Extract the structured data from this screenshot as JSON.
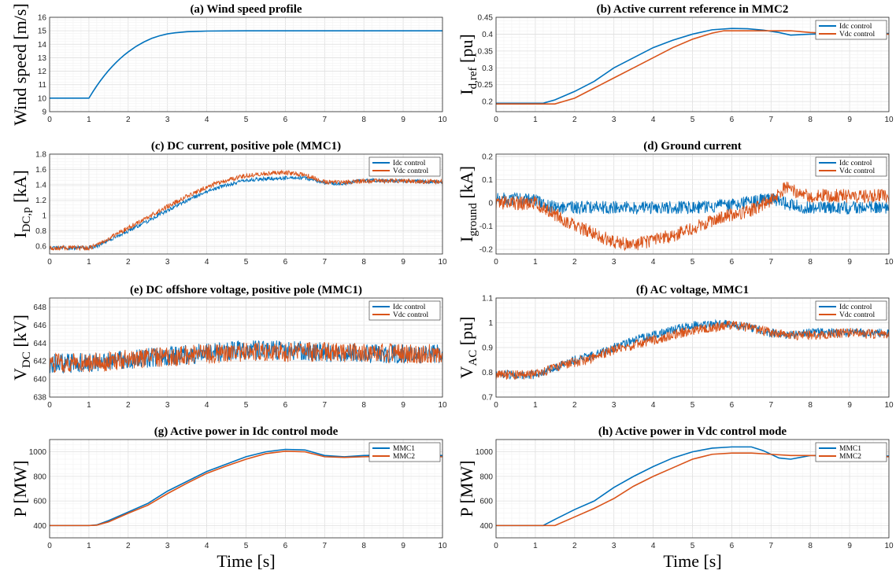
{
  "colors": {
    "blue": "#0072BD",
    "orange": "#D95319"
  },
  "xlabel": "Time [s]",
  "chart_data": [
    {
      "id": "a",
      "type": "line",
      "title": "(a) Wind speed profile",
      "ylabel": "Wind speed [m/s]",
      "xlim": [
        0,
        10
      ],
      "ylim": [
        9,
        16
      ],
      "xticks": [
        "0",
        "1",
        "2",
        "3",
        "4",
        "5",
        "6",
        "7",
        "8",
        "9",
        "10"
      ],
      "yticks": [
        "9",
        "10",
        "11",
        "12",
        "13",
        "14",
        "15",
        "16"
      ],
      "grid": true,
      "legend": null,
      "series": [
        {
          "color": "blue",
          "x": [
            0,
            1,
            1.1,
            1.2,
            1.3,
            1.4,
            1.5,
            1.6,
            1.7,
            1.8,
            1.9,
            2,
            2.2,
            2.4,
            2.6,
            2.8,
            3,
            3.2,
            3.5,
            3.8,
            4,
            4.5,
            5,
            6,
            7,
            8,
            9,
            10
          ],
          "y": [
            10,
            10,
            10.47,
            10.91,
            11.32,
            11.7,
            12.05,
            12.37,
            12.67,
            12.95,
            13.2,
            13.43,
            13.84,
            14.17,
            14.44,
            14.63,
            14.77,
            14.85,
            14.93,
            14.96,
            14.98,
            14.99,
            15,
            15,
            15,
            15,
            15,
            15
          ]
        }
      ]
    },
    {
      "id": "b",
      "type": "line",
      "title": "(b) Active current reference in MMC2",
      "ylabel": "I",
      "ylabel_sub": "d,ref",
      "ylabel_unit": " [pu]",
      "xlim": [
        0,
        10
      ],
      "ylim": [
        0.17,
        0.45
      ],
      "xticks": [
        "0",
        "1",
        "2",
        "3",
        "4",
        "5",
        "6",
        "7",
        "8",
        "9",
        "10"
      ],
      "yticks": [
        "0.2",
        "0.25",
        "0.3",
        "0.35",
        "0.4",
        "0.45"
      ],
      "ytick_values": [
        0.2,
        0.25,
        0.3,
        0.35,
        0.4,
        0.45
      ],
      "grid": true,
      "legend": "top-right",
      "series": [
        {
          "name": "Idc control",
          "color": "blue",
          "x": [
            0,
            1.2,
            1.5,
            2,
            2.5,
            3,
            3.5,
            4,
            4.5,
            5,
            5.5,
            6,
            6.4,
            6.8,
            7.2,
            7.5,
            8,
            9,
            10
          ],
          "y": [
            0.195,
            0.195,
            0.205,
            0.23,
            0.26,
            0.3,
            0.33,
            0.36,
            0.382,
            0.4,
            0.413,
            0.417,
            0.416,
            0.412,
            0.405,
            0.397,
            0.4,
            0.402,
            0.402
          ]
        },
        {
          "name": "Vdc control",
          "color": "orange",
          "x": [
            0,
            1.5,
            2,
            2.5,
            3,
            3.5,
            4,
            4.5,
            5,
            5.5,
            5.8,
            6,
            7,
            7.5,
            8,
            8.5,
            9,
            10
          ],
          "y": [
            0.193,
            0.193,
            0.21,
            0.24,
            0.27,
            0.3,
            0.33,
            0.36,
            0.385,
            0.403,
            0.41,
            0.41,
            0.41,
            0.41,
            0.405,
            0.402,
            0.402,
            0.4
          ]
        }
      ]
    },
    {
      "id": "c",
      "type": "line",
      "title": "(c) DC current, positive pole (MMC1)",
      "ylabel": "I",
      "ylabel_sub": "DC,p",
      "ylabel_unit": " [kA]",
      "xlim": [
        0,
        10
      ],
      "ylim": [
        0.5,
        1.8
      ],
      "xticks": [
        "0",
        "1",
        "2",
        "3",
        "4",
        "5",
        "6",
        "7",
        "8",
        "9",
        "10"
      ],
      "yticks": [
        "0.6",
        "0.8",
        "1",
        "1.2",
        "1.4",
        "1.6",
        "1.8"
      ],
      "ytick_values": [
        0.6,
        0.8,
        1,
        1.2,
        1.4,
        1.6,
        1.8
      ],
      "grid": true,
      "legend": "top-right",
      "series": [
        {
          "name": "Idc control",
          "color": "blue",
          "x": [
            0,
            1,
            1.2,
            1.5,
            2,
            2.5,
            3,
            3.5,
            4,
            4.5,
            5,
            5.5,
            6,
            6.5,
            7,
            7.5,
            8,
            9,
            10
          ],
          "y": [
            0.58,
            0.58,
            0.6,
            0.68,
            0.8,
            0.93,
            1.07,
            1.2,
            1.31,
            1.4,
            1.46,
            1.48,
            1.49,
            1.49,
            1.42,
            1.42,
            1.46,
            1.45,
            1.44
          ]
        },
        {
          "name": "Vdc control",
          "color": "orange",
          "x": [
            0,
            1,
            1.2,
            1.5,
            2,
            2.5,
            3,
            3.5,
            4,
            4.5,
            5,
            5.5,
            6,
            6.5,
            7,
            7.5,
            8,
            9,
            10
          ],
          "y": [
            0.58,
            0.58,
            0.61,
            0.7,
            0.84,
            0.98,
            1.12,
            1.25,
            1.37,
            1.46,
            1.52,
            1.55,
            1.56,
            1.53,
            1.44,
            1.43,
            1.45,
            1.45,
            1.44
          ]
        }
      ]
    },
    {
      "id": "d",
      "type": "line",
      "title": "(d) Ground current",
      "ylabel": "I",
      "ylabel_sub": "ground",
      "ylabel_unit": " [kA]",
      "xlim": [
        0,
        10
      ],
      "ylim": [
        -0.22,
        0.21
      ],
      "xticks": [
        "0",
        "1",
        "2",
        "3",
        "4",
        "5",
        "6",
        "7",
        "8",
        "9",
        "10"
      ],
      "yticks": [
        "-0.2",
        "-0.1",
        "0",
        "0.1",
        "0.2"
      ],
      "ytick_values": [
        -0.2,
        -0.1,
        0,
        0.1,
        0.2
      ],
      "grid": true,
      "legend": "top-right",
      "series": [
        {
          "name": "Idc control",
          "color": "blue",
          "x": [
            0,
            1,
            1.5,
            2,
            3,
            4,
            5,
            6,
            7,
            7.5,
            8,
            9,
            10
          ],
          "y": [
            0.02,
            0.01,
            -0.02,
            -0.02,
            -0.02,
            -0.02,
            -0.02,
            -0.01,
            0.02,
            -0.01,
            -0.02,
            -0.02,
            -0.02
          ]
        },
        {
          "name": "Vdc control",
          "color": "orange",
          "x": [
            0,
            1,
            1.5,
            2,
            2.5,
            3,
            3.5,
            4,
            4.5,
            5,
            5.5,
            6,
            6.5,
            7,
            7.4,
            7.6,
            8,
            9,
            10
          ],
          "y": [
            0,
            0,
            -0.05,
            -0.1,
            -0.13,
            -0.17,
            -0.18,
            -0.16,
            -0.14,
            -0.11,
            -0.08,
            -0.05,
            -0.03,
            0.01,
            0.07,
            0.05,
            0.03,
            0.03,
            0.03
          ]
        }
      ]
    },
    {
      "id": "e",
      "type": "line",
      "title": "(e) DC offshore voltage, positive pole (MMC1)",
      "ylabel": "V",
      "ylabel_sub": "DC",
      "ylabel_unit": " [kV]",
      "xlim": [
        0,
        10
      ],
      "ylim": [
        638,
        649
      ],
      "xticks": [
        "0",
        "1",
        "2",
        "3",
        "4",
        "5",
        "6",
        "7",
        "8",
        "9",
        "10"
      ],
      "yticks": [
        "638",
        "640",
        "642",
        "644",
        "646",
        "648"
      ],
      "ytick_values": [
        638,
        640,
        642,
        644,
        646,
        648
      ],
      "grid": true,
      "legend": "top-right",
      "series": [
        {
          "name": "Idc control",
          "color": "blue",
          "x": [
            0,
            1,
            2,
            3,
            4,
            5,
            6,
            7,
            8,
            9,
            10
          ],
          "y": [
            641.8,
            641.8,
            642.2,
            642.5,
            642.9,
            643.2,
            643.2,
            643,
            642.9,
            642.8,
            642.8
          ]
        },
        {
          "name": "Vdc control",
          "color": "orange",
          "x": [
            0,
            1,
            2,
            3,
            4,
            5,
            6,
            7,
            8,
            9,
            10
          ],
          "y": [
            641.8,
            641.8,
            642.2,
            642.5,
            642.8,
            643,
            643,
            643,
            642.9,
            642.8,
            642.8
          ]
        }
      ]
    },
    {
      "id": "f",
      "type": "line",
      "title": "(f) AC voltage, MMC1",
      "ylabel": "V",
      "ylabel_sub": "AC",
      "ylabel_unit": " [pu]",
      "xlim": [
        0,
        10
      ],
      "ylim": [
        0.7,
        1.1
      ],
      "xticks": [
        "0",
        "1",
        "2",
        "3",
        "4",
        "5",
        "6",
        "7",
        "8",
        "9",
        "10"
      ],
      "yticks": [
        "0.7",
        "0.8",
        "0.9",
        "1",
        "1.1"
      ],
      "ytick_values": [
        0.7,
        0.8,
        0.9,
        1,
        1.1
      ],
      "grid": true,
      "legend": "top-right",
      "series": [
        {
          "name": "Idc control",
          "color": "blue",
          "x": [
            0,
            1,
            1.2,
            1.5,
            2,
            2.5,
            3,
            3.5,
            4,
            4.5,
            5,
            5.5,
            6,
            6.5,
            7,
            7.5,
            8,
            9,
            10
          ],
          "y": [
            0.79,
            0.79,
            0.8,
            0.82,
            0.85,
            0.87,
            0.9,
            0.93,
            0.95,
            0.97,
            0.99,
            0.995,
            0.995,
            0.98,
            0.96,
            0.95,
            0.96,
            0.96,
            0.96
          ]
        },
        {
          "name": "Vdc control",
          "color": "orange",
          "x": [
            0,
            1,
            1.2,
            1.5,
            2,
            2.5,
            3,
            3.5,
            4,
            4.5,
            5,
            5.5,
            6,
            6.5,
            7,
            7.5,
            8,
            9,
            10
          ],
          "y": [
            0.79,
            0.79,
            0.8,
            0.82,
            0.84,
            0.86,
            0.89,
            0.91,
            0.93,
            0.95,
            0.97,
            0.98,
            0.99,
            0.98,
            0.96,
            0.95,
            0.95,
            0.96,
            0.95
          ]
        }
      ]
    },
    {
      "id": "g",
      "type": "line",
      "title": "(g) Active power in Idc control mode",
      "ylabel": "P [MW]",
      "xlim": [
        0,
        10
      ],
      "ylim": [
        300,
        1100
      ],
      "xticks": [
        "0",
        "1",
        "2",
        "3",
        "4",
        "5",
        "6",
        "7",
        "8",
        "9",
        "10"
      ],
      "yticks": [
        "400",
        "600",
        "800",
        "1000"
      ],
      "ytick_values": [
        400,
        600,
        800,
        1000
      ],
      "grid": true,
      "legend": "top-right",
      "series": [
        {
          "name": "MMC1",
          "color": "blue",
          "x": [
            0,
            1,
            1.2,
            1.5,
            2,
            2.5,
            3,
            3.5,
            4,
            4.5,
            5,
            5.5,
            6,
            6.5,
            7,
            7.5,
            8,
            9,
            10
          ],
          "y": [
            400,
            400,
            405,
            440,
            510,
            580,
            680,
            760,
            840,
            900,
            960,
            1000,
            1020,
            1015,
            970,
            960,
            970,
            975,
            970
          ]
        },
        {
          "name": "MMC2",
          "color": "orange",
          "x": [
            0,
            1,
            1.2,
            1.5,
            2,
            2.5,
            3,
            3.5,
            4,
            4.5,
            5,
            5.5,
            6,
            6.5,
            7,
            7.5,
            8,
            9,
            10
          ],
          "y": [
            400,
            400,
            403,
            430,
            500,
            565,
            660,
            745,
            825,
            885,
            940,
            985,
            1005,
            1000,
            960,
            955,
            960,
            965,
            960
          ]
        }
      ]
    },
    {
      "id": "h",
      "type": "line",
      "title": "(h) Active power in Vdc control mode",
      "ylabel": "P [MW]",
      "xlim": [
        0,
        10
      ],
      "ylim": [
        300,
        1100
      ],
      "xticks": [
        "0",
        "1",
        "2",
        "3",
        "4",
        "5",
        "6",
        "7",
        "8",
        "9",
        "10"
      ],
      "yticks": [
        "400",
        "600",
        "800",
        "1000"
      ],
      "ytick_values": [
        400,
        600,
        800,
        1000
      ],
      "grid": true,
      "legend": "top-right",
      "series": [
        {
          "name": "MMC1",
          "color": "blue",
          "x": [
            0,
            1.2,
            1.5,
            2,
            2.5,
            3,
            3.5,
            4,
            4.5,
            5,
            5.5,
            6,
            6.5,
            6.8,
            7,
            7.2,
            7.5,
            8,
            9,
            10
          ],
          "y": [
            400,
            400,
            450,
            530,
            600,
            710,
            800,
            880,
            950,
            1000,
            1030,
            1040,
            1040,
            1010,
            980,
            950,
            940,
            970,
            970,
            965
          ]
        },
        {
          "name": "MMC2",
          "color": "orange",
          "x": [
            0,
            1.5,
            2,
            2.5,
            3,
            3.5,
            4,
            4.5,
            5,
            5.5,
            6,
            6.5,
            7,
            7.5,
            8,
            9,
            10
          ],
          "y": [
            400,
            400,
            470,
            540,
            620,
            720,
            800,
            870,
            940,
            980,
            990,
            990,
            980,
            970,
            970,
            965,
            960
          ]
        }
      ]
    }
  ]
}
